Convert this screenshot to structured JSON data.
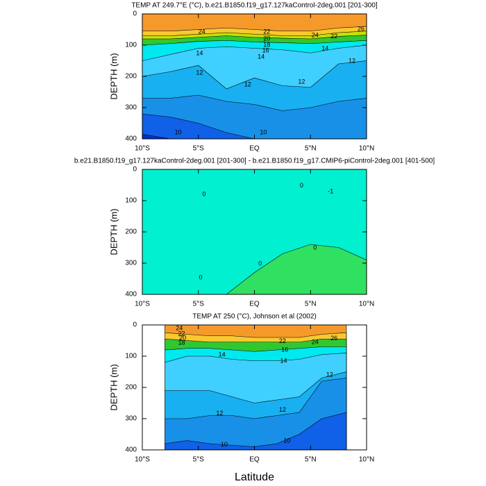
{
  "chart_data": [
    {
      "type": "contour",
      "title": "TEMP AT 249.7°E (°C), b.e21.B1850.f19_g17.127kaControl-2deg.001 [201-300]",
      "ylabel": "DEPTH (m)",
      "xlim": [
        -10,
        10
      ],
      "ylim": [
        400,
        0
      ],
      "xticks": [
        {
          "value": -10,
          "label": "10°S"
        },
        {
          "value": -5,
          "label": "5°S"
        },
        {
          "value": 0,
          "label": "EQ"
        },
        {
          "value": 5,
          "label": "5°N"
        },
        {
          "value": 10,
          "label": "10°N"
        }
      ],
      "yticks": [
        0,
        100,
        200,
        300,
        400
      ],
      "x": [
        -10,
        -7.5,
        -5,
        -2.5,
        0,
        2.5,
        5,
        7.5,
        10
      ],
      "bands": [
        {
          "color": "#f59a2a",
          "depth": [
            0,
            0,
            0,
            0,
            0,
            0,
            0,
            0,
            0
          ]
        },
        {
          "color": "#f8c830",
          "depth": [
            55,
            55,
            50,
            45,
            50,
            55,
            55,
            45,
            40
          ]
        },
        {
          "color": "#c8e000",
          "depth": [
            70,
            70,
            65,
            60,
            65,
            70,
            70,
            60,
            55
          ]
        },
        {
          "color": "#30c830",
          "depth": [
            80,
            80,
            75,
            70,
            75,
            78,
            80,
            72,
            68
          ]
        },
        {
          "color": "#00e8f0",
          "depth": [
            100,
            95,
            88,
            85,
            90,
            92,
            95,
            90,
            85
          ]
        },
        {
          "color": "#40d0ff",
          "depth": [
            150,
            130,
            110,
            105,
            110,
            115,
            125,
            110,
            100
          ]
        },
        {
          "color": "#18b0f0",
          "depth": [
            200,
            185,
            165,
            240,
            205,
            230,
            235,
            160,
            150
          ]
        },
        {
          "color": "#1890e8",
          "depth": [
            270,
            270,
            260,
            280,
            290,
            310,
            300,
            280,
            270
          ]
        },
        {
          "color": "#1060e8",
          "depth": [
            320,
            330,
            350,
            380,
            400,
            400,
            400,
            400,
            400
          ]
        },
        {
          "color": "#0030d0",
          "depth": [
            385,
            400,
            400,
            400,
            400,
            400,
            400,
            400,
            400
          ]
        }
      ],
      "contour_labels": [
        {
          "x": -4.7,
          "y": 58,
          "value": 24
        },
        {
          "x": 1.1,
          "y": 58,
          "value": 22
        },
        {
          "x": 1.1,
          "y": 80,
          "value": 20
        },
        {
          "x": 1.1,
          "y": 100,
          "value": 18
        },
        {
          "x": 5.4,
          "y": 69,
          "value": 24
        },
        {
          "x": 9.5,
          "y": 49,
          "value": 26
        },
        {
          "x": 7.1,
          "y": 73,
          "value": 22
        },
        {
          "x": -4.9,
          "y": 127,
          "value": 14
        },
        {
          "x": 1.0,
          "y": 118,
          "value": 16
        },
        {
          "x": 0.6,
          "y": 138,
          "value": 14
        },
        {
          "x": 6.3,
          "y": 111,
          "value": 14
        },
        {
          "x": -4.9,
          "y": 189,
          "value": 12
        },
        {
          "x": -0.6,
          "y": 227,
          "value": 12
        },
        {
          "x": 4.2,
          "y": 218,
          "value": 12
        },
        {
          "x": 8.7,
          "y": 151,
          "value": 12
        },
        {
          "x": -6.8,
          "y": 380,
          "value": 10
        },
        {
          "x": 0.8,
          "y": 380,
          "value": 10
        }
      ]
    },
    {
      "type": "contour",
      "title": "b.e21.B1850.f19_g17.127kaControl-2deg.001 [201-300] - b.e21.B1850.f19_g17.CMIP6-piControl-2deg.001 [401-500]",
      "ylabel": "DEPTH (m)",
      "xlim": [
        -10,
        10
      ],
      "ylim": [
        400,
        0
      ],
      "xticks": [
        {
          "value": -10,
          "label": "10°S"
        },
        {
          "value": -5,
          "label": "5°S"
        },
        {
          "value": 0,
          "label": "EQ"
        },
        {
          "value": 5,
          "label": "5°N"
        },
        {
          "value": 10,
          "label": "10°N"
        }
      ],
      "yticks": [
        0,
        100,
        200,
        300,
        400
      ],
      "x": [
        -10,
        -7.5,
        -5,
        -2.5,
        0,
        2.5,
        5,
        7.5,
        10
      ],
      "bands": [
        {
          "color": "#00f0d0",
          "depth": [
            0,
            0,
            0,
            0,
            0,
            0,
            0,
            0,
            0
          ]
        },
        {
          "color": "#30e060",
          "depth": [
            400,
            400,
            400,
            400,
            330,
            270,
            240,
            250,
            290
          ]
        }
      ],
      "contour_labels": [
        {
          "x": -4.5,
          "y": 80,
          "value": 0
        },
        {
          "x": 4.2,
          "y": 53,
          "value": 0
        },
        {
          "x": 6.8,
          "y": 71,
          "value": -1
        },
        {
          "x": 0.5,
          "y": 302,
          "value": 0
        },
        {
          "x": 5.4,
          "y": 251,
          "value": 0
        },
        {
          "x": -4.8,
          "y": 347,
          "value": 0
        }
      ]
    },
    {
      "type": "contour",
      "title": "TEMP AT 250 (°C), Johnson et al (2002)",
      "ylabel": "DEPTH (m)",
      "xlabel": "Latitude",
      "xlim": [
        -10,
        10
      ],
      "ylim": [
        400,
        0
      ],
      "xticks": [
        {
          "value": -10,
          "label": "10°S"
        },
        {
          "value": -5,
          "label": "5°S"
        },
        {
          "value": 0,
          "label": "EQ"
        },
        {
          "value": 5,
          "label": "5°N"
        },
        {
          "value": 10,
          "label": "10°N"
        }
      ],
      "yticks": [
        0,
        100,
        200,
        300,
        400
      ],
      "x": [
        -8,
        -6,
        -4,
        -2,
        0,
        2,
        4,
        6,
        8.2
      ],
      "bands": [
        {
          "color": "#f59a2a",
          "depth": [
            0,
            0,
            0,
            0,
            0,
            0,
            0,
            0,
            0
          ]
        },
        {
          "color": "#f8c830",
          "depth": [
            25,
            30,
            35,
            35,
            40,
            40,
            40,
            30,
            25
          ]
        },
        {
          "color": "#30c830",
          "depth": [
            45,
            50,
            55,
            55,
            55,
            55,
            55,
            45,
            45
          ]
        },
        {
          "color": "#00e8f0",
          "depth": [
            80,
            75,
            75,
            80,
            85,
            80,
            75,
            70,
            70
          ]
        },
        {
          "color": "#40d0ff",
          "depth": [
            120,
            100,
            100,
            110,
            115,
            115,
            110,
            95,
            90
          ]
        },
        {
          "color": "#18b0f0",
          "depth": [
            210,
            210,
            210,
            230,
            250,
            240,
            230,
            170,
            150
          ]
        },
        {
          "color": "#1890e8",
          "depth": [
            300,
            300,
            290,
            290,
            300,
            290,
            280,
            180,
            170
          ]
        },
        {
          "color": "#1060e8",
          "depth": [
            380,
            370,
            380,
            385,
            390,
            380,
            350,
            300,
            280
          ]
        }
      ],
      "contour_labels": [
        {
          "x": -6.7,
          "y": 11,
          "value": 24
        },
        {
          "x": -6.5,
          "y": 29,
          "value": 22
        },
        {
          "x": -6.4,
          "y": 42,
          "value": 20
        },
        {
          "x": -6.5,
          "y": 58,
          "value": 18
        },
        {
          "x": -2.9,
          "y": 96,
          "value": 14
        },
        {
          "x": 2.6,
          "y": 116,
          "value": 14
        },
        {
          "x": 2.7,
          "y": 80,
          "value": 16
        },
        {
          "x": 2.5,
          "y": 53,
          "value": 22
        },
        {
          "x": 5.4,
          "y": 56,
          "value": 24
        },
        {
          "x": 7.1,
          "y": 44,
          "value": 26
        },
        {
          "x": -3.1,
          "y": 284,
          "value": 12
        },
        {
          "x": 2.5,
          "y": 273,
          "value": 12
        },
        {
          "x": 6.7,
          "y": 160,
          "value": 12
        },
        {
          "x": -2.7,
          "y": 384,
          "value": 10
        },
        {
          "x": 2.9,
          "y": 371,
          "value": 10
        }
      ]
    }
  ]
}
